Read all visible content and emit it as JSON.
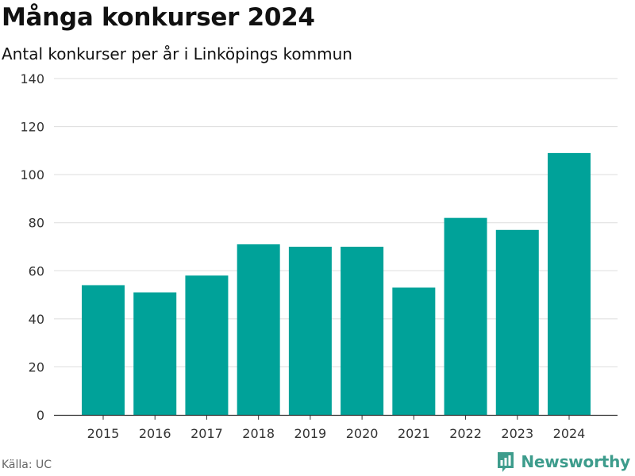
{
  "header": {
    "title": "Många konkurser 2024",
    "subtitle": "Antal konkurser per år i Linköpings kommun"
  },
  "footer": {
    "source": "Källa: UC",
    "brand": "Newsworthy",
    "brand_icon": "newsworthy-logo-icon"
  },
  "colors": {
    "bar": "#00a299",
    "grid": "#dddddd",
    "axis": "#333333",
    "brand": "#3d9c8c"
  },
  "chart_data": {
    "type": "bar",
    "title": "Många konkurser 2024",
    "subtitle": "Antal konkurser per år i Linköpings kommun",
    "xlabel": "",
    "ylabel": "",
    "categories": [
      "2015",
      "2016",
      "2017",
      "2018",
      "2019",
      "2020",
      "2021",
      "2022",
      "2023",
      "2024"
    ],
    "values": [
      54,
      51,
      58,
      71,
      70,
      70,
      53,
      82,
      77,
      109
    ],
    "ylim": [
      0,
      140
    ],
    "yticks": [
      0,
      20,
      40,
      60,
      80,
      100,
      120,
      140
    ],
    "grid": true,
    "legend": "none"
  }
}
